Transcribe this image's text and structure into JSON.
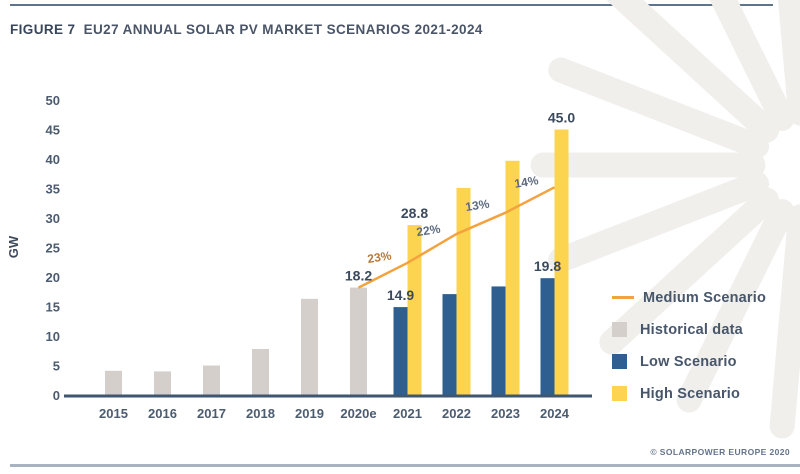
{
  "figure": {
    "label": "FIGURE 7",
    "title": "EU27 ANNUAL SOLAR PV MARKET SCENARIOS 2021-2024"
  },
  "attribution": "© SOLARPOWER EUROPE 2020",
  "colors": {
    "historical": "#d4cfca",
    "low": "#2e5f90",
    "high": "#fcd450",
    "medium": "#f3a23e",
    "axis_line": "#3e566f",
    "tick_text": "#4c5c70",
    "watermark": "#f0efec"
  },
  "chart_data": {
    "type": "bar",
    "title": "FIGURE 7 EU27 ANNUAL SOLAR PV MARKET SCENARIOS 2021-2024",
    "xlabel": "",
    "ylabel": "GW",
    "ylim": [
      0,
      50
    ],
    "yticks": [
      0,
      5,
      10,
      15,
      20,
      25,
      30,
      35,
      40,
      45,
      50
    ],
    "grid": false,
    "legend_position": "right",
    "categories": [
      "2015",
      "2016",
      "2017",
      "2018",
      "2019",
      "2020e",
      "2021",
      "2022",
      "2023",
      "2024"
    ],
    "series": [
      {
        "name": "Historical data",
        "type": "bar",
        "color": "#d4cfca",
        "values": [
          4.1,
          4.0,
          5.0,
          7.8,
          16.3,
          18.2,
          null,
          null,
          null,
          null
        ]
      },
      {
        "name": "Low Scenario",
        "type": "bar",
        "color": "#2e5f90",
        "values": [
          null,
          null,
          null,
          null,
          null,
          null,
          14.9,
          17.1,
          18.4,
          19.8
        ]
      },
      {
        "name": "High Scenario",
        "type": "bar",
        "color": "#fcd450",
        "values": [
          null,
          null,
          null,
          null,
          null,
          null,
          28.8,
          35.1,
          39.7,
          45.0
        ]
      },
      {
        "name": "Medium Scenario",
        "type": "line",
        "color": "#f3a23e",
        "values": [
          null,
          null,
          null,
          null,
          null,
          18.2,
          22.4,
          27.3,
          30.9,
          35.2
        ]
      }
    ],
    "value_labels": [
      {
        "category": "2020e",
        "series": "Historical data",
        "text": "18.2"
      },
      {
        "category": "2021",
        "series": "Low Scenario",
        "text": "14.9"
      },
      {
        "category": "2021",
        "series": "High Scenario",
        "text": "28.8"
      },
      {
        "category": "2024",
        "series": "Low Scenario",
        "text": "19.8"
      },
      {
        "category": "2024",
        "series": "High Scenario",
        "text": "45.0"
      }
    ],
    "growth_labels": [
      {
        "text": "23%",
        "after": "2020e",
        "color": "#b5783c"
      },
      {
        "text": "22%",
        "after": "2021",
        "color": "#5d6b80"
      },
      {
        "text": "13%",
        "after": "2022",
        "color": "#5d6b80"
      },
      {
        "text": "14%",
        "after": "2023",
        "color": "#5d6b80"
      }
    ],
    "legend": [
      {
        "label": "Medium Scenario",
        "swatch": "line",
        "color": "#f3a23e"
      },
      {
        "label": "Historical data",
        "swatch": "square",
        "color": "#d4cfca"
      },
      {
        "label": "Low Scenario",
        "swatch": "square",
        "color": "#2e5f90"
      },
      {
        "label": "High Scenario",
        "swatch": "square",
        "color": "#fcd450"
      }
    ]
  }
}
